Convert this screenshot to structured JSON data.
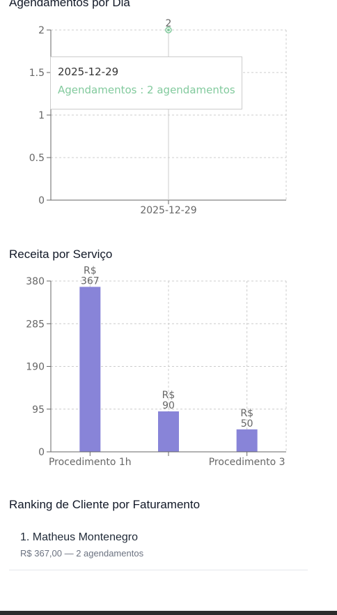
{
  "sections": {
    "appointments_title": "Agendamentos por Dia",
    "revenue_title": "Receita por Serviço",
    "ranking_title": "Ranking de Cliente por Faturamento"
  },
  "tooltip": {
    "label": "2025-12-29",
    "item": "Agendamentos : 2 agendamentos"
  },
  "ranking": {
    "items": [
      {
        "name": "1. Matheus Montenegro",
        "meta": "R$ 367,00 — 2 agendamentos"
      }
    ]
  },
  "colors": {
    "line": "#82ca9d",
    "bar": "#8884d8",
    "grid": "#cccccc",
    "axis": "#666666"
  },
  "chart_data": [
    {
      "type": "line",
      "title": "Agendamentos por Dia",
      "x": [
        "2025-12-29"
      ],
      "series": [
        {
          "values": [
            2
          ]
        }
      ],
      "yticks": [
        "0",
        "0.5",
        "1",
        "1.5",
        "2"
      ],
      "ylim": [
        0,
        2
      ],
      "data_labels": [
        "2"
      ],
      "grid": true
    },
    {
      "type": "bar",
      "title": "Receita por Serviço",
      "categories": [
        "Procedimento 1h",
        "",
        "Procedimento 3"
      ],
      "values": [
        367,
        90,
        50
      ],
      "data_labels": [
        [
          "R$",
          "367"
        ],
        [
          "R$",
          "90"
        ],
        [
          "R$",
          "50"
        ]
      ],
      "yticks": [
        "0",
        "95",
        "190",
        "285",
        "380"
      ],
      "ylim": [
        0,
        380
      ],
      "grid": true
    }
  ]
}
